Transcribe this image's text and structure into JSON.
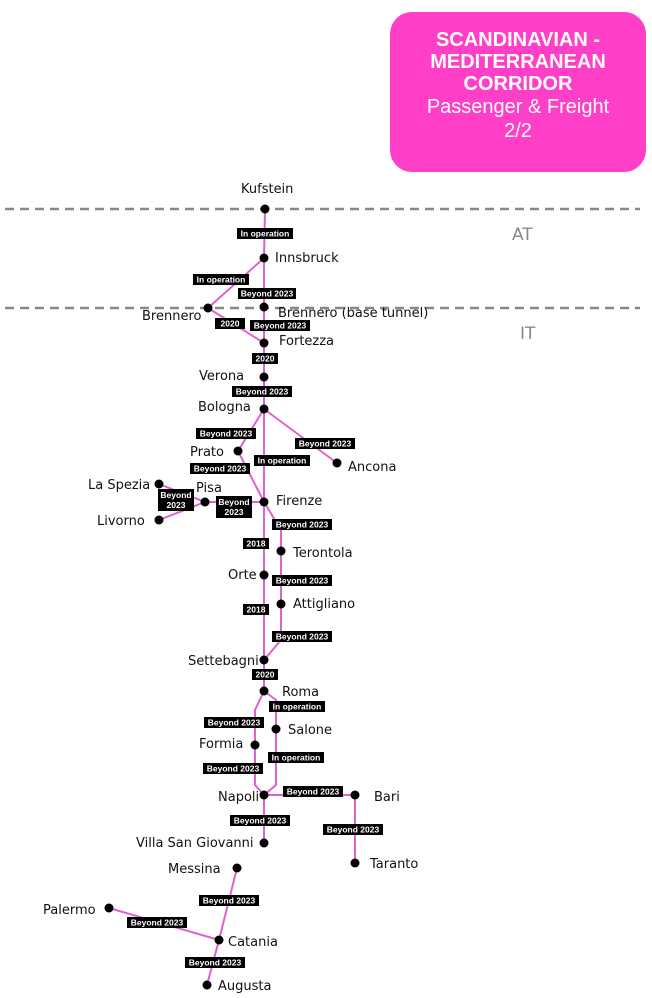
{
  "title": {
    "line1": "SCANDINAVIAN  -",
    "line2": "MEDITERRANEAN",
    "line3": "CORRIDOR",
    "line4": "Passenger & Freight",
    "line5": "2/2"
  },
  "colors": {
    "line": "#e060d0",
    "title_bg": "#ff3fc8",
    "tag_bg": "#000000",
    "border": "#888888"
  },
  "countries": [
    "AT",
    "IT"
  ],
  "stations": [
    "Kufstein",
    "Innsbruck",
    "Brennero",
    "Brennero (base tunnel)",
    "Fortezza",
    "Verona",
    "Bologna",
    "Prato",
    "Ancona",
    "La Spezia",
    "Pisa",
    "Livorno",
    "Firenze",
    "Terontola",
    "Orte",
    "Attigliano",
    "Settebagni",
    "Roma",
    "Salone",
    "Formia",
    "Napoli",
    "Bari",
    "Villa San Giovanni",
    "Taranto",
    "Messina",
    "Palermo",
    "Catania",
    "Augusta"
  ],
  "segment_labels": [
    "In operation",
    "In operation",
    "Beyond 2023",
    "2020",
    "Beyond 2023",
    "2020",
    "Beyond 2023",
    "Beyond 2023",
    "In operation",
    "Beyond 2023",
    "Beyond 2023",
    "Beyond 2023",
    "Beyond 2023",
    "Beyond 2023",
    "2018",
    "Beyond 2023",
    "2018",
    "Beyond 2023",
    "2020",
    "In operation",
    "Beyond 2023",
    "In operation",
    "Beyond 2023",
    "Beyond 2023",
    "Beyond 2023",
    "Beyond 2023",
    "Beyond 2023",
    "Beyond 2023",
    "Beyond 2023"
  ]
}
